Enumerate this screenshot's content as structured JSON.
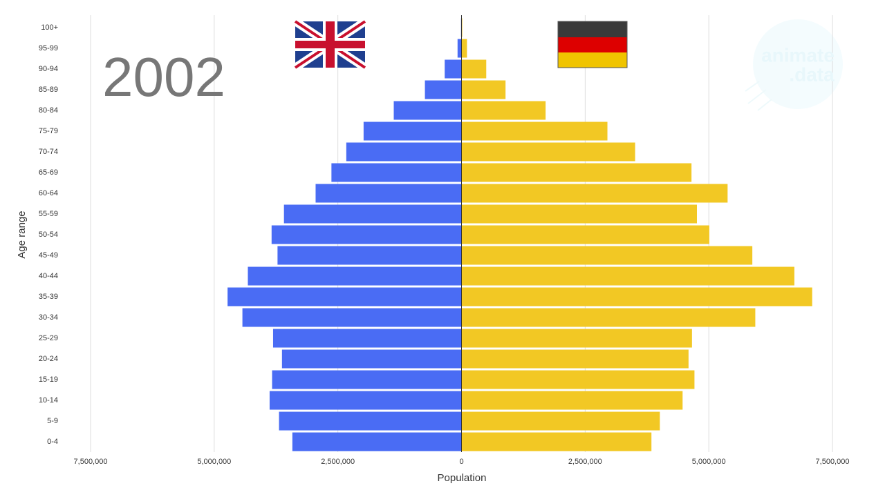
{
  "chart_data": {
    "type": "pyramid",
    "title": "2002",
    "x_label": "Population",
    "y_label": "Age range",
    "annotations": [
      "animate",
      ".data"
    ],
    "categories": [
      "0-4",
      "5-9",
      "10-14",
      "15-19",
      "20-24",
      "25-29",
      "30-34",
      "35-39",
      "40-44",
      "45-49",
      "50-54",
      "55-59",
      "60-64",
      "65-69",
      "70-74",
      "75-79",
      "80-84",
      "85-89",
      "90-94",
      "95-99",
      "100+"
    ],
    "series": [
      {
        "color": "#4a6cf4",
        "values": [
          -3420000,
          -3690000,
          -3880000,
          -3830000,
          -3630000,
          -3810000,
          -4430000,
          -4730000,
          -4320000,
          -3720000,
          -3840000,
          -3590000,
          -2950000,
          -2630000,
          -2330000,
          -1980000,
          -1370000,
          -740000,
          -340000,
          -80000,
          -10000
        ]
      },
      {
        "color": "#f2c824",
        "values": [
          3840000,
          4010000,
          4470000,
          4710000,
          4590000,
          4660000,
          5940000,
          7090000,
          6730000,
          5880000,
          5010000,
          4760000,
          5380000,
          4650000,
          3510000,
          2950000,
          1700000,
          890000,
          500000,
          110000,
          15000
        ]
      }
    ],
    "xlim": [
      -7500000,
      7500000
    ],
    "xticks": [
      {
        "value": -7500000,
        "label": "7,500,000"
      },
      {
        "value": -5000000,
        "label": "5,000,000"
      },
      {
        "value": -2500000,
        "label": "2,500,000"
      },
      0,
      {
        "value": 2500000,
        "label": "2,500,000"
      },
      {
        "value": 5000000,
        "label": "5,000,000"
      },
      {
        "value": 7500000,
        "label": "7,500,000"
      }
    ],
    "grid": true
  }
}
